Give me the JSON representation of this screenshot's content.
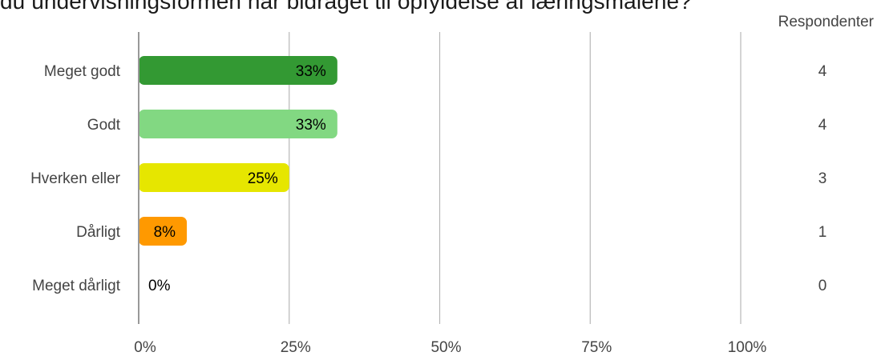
{
  "title": "du undervisningsformen har bidraget til opfyldelse af læringsmålene?",
  "respondents_header": "Respondenter",
  "chart_data": {
    "type": "bar",
    "orientation": "horizontal",
    "title": "du undervisningsformen har bidraget til opfyldelse af læringsmålene?",
    "categories": [
      "Meget godt",
      "Godt",
      "Hverken eller",
      "Dårligt",
      "Meget dårligt"
    ],
    "values": [
      33,
      33,
      25,
      8,
      0
    ],
    "value_labels": [
      "33%",
      "33%",
      "25%",
      "8%",
      "0%"
    ],
    "respondents": [
      4,
      4,
      3,
      1,
      0
    ],
    "colors": [
      "#339933",
      "#82d882",
      "#e6e600",
      "#ff9900",
      "#cccccc"
    ],
    "xlim": [
      0,
      100
    ],
    "xticks": [
      0,
      25,
      50,
      75,
      100
    ],
    "xtick_labels": [
      "0%",
      "25%",
      "50%",
      "75%",
      "100%"
    ],
    "grid": true,
    "legend": "none"
  }
}
